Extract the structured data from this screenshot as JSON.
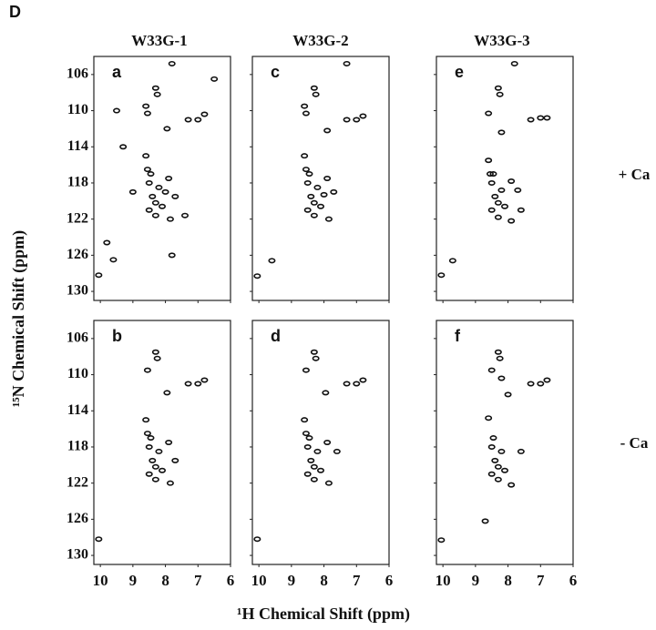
{
  "figure_label": "D",
  "column_titles": [
    "W33G-1",
    "W33G-2",
    "W33G-3"
  ],
  "row_labels": [
    "+ Ca",
    "- Ca"
  ],
  "x_label": "¹H Chemical Shift (ppm)",
  "y_label": "¹⁵N Chemical Shift (ppm)",
  "chart_data": [
    {
      "type": "scatter",
      "panel": "a",
      "xlim": [
        10.2,
        6
      ],
      "ylim": [
        104,
        131
      ],
      "xticks": [
        10,
        9,
        8,
        7,
        6
      ],
      "yticks": [
        106,
        110,
        114,
        118,
        122,
        126,
        130
      ],
      "x": [
        7.8,
        6.5,
        8.3,
        8.25,
        8.6,
        8.55,
        9.5,
        7.3,
        7.0,
        6.8,
        7.95,
        9.3,
        8.6,
        8.55,
        8.5,
        8.2,
        7.9,
        8.4,
        8.3,
        8.1,
        8.5,
        8.3,
        7.85,
        7.4,
        7.7,
        9.0,
        7.8,
        9.6,
        9.8,
        10.05,
        8.45,
        8.0
      ],
      "y": [
        104.8,
        106.5,
        107.5,
        108.2,
        109.5,
        110.3,
        110.0,
        111.0,
        111.0,
        110.4,
        112.0,
        114.0,
        115.0,
        116.5,
        118.0,
        118.5,
        117.5,
        119.5,
        120.2,
        120.6,
        121.0,
        121.6,
        122.0,
        121.6,
        119.5,
        119.0,
        126.0,
        126.5,
        124.6,
        128.2,
        117.0,
        119.0
      ]
    },
    {
      "type": "scatter",
      "panel": "c",
      "xlim": [
        10.2,
        6
      ],
      "ylim": [
        104,
        131
      ],
      "xticks": [
        10,
        9,
        8,
        7,
        6
      ],
      "yticks": [
        106,
        110,
        114,
        118,
        122,
        126,
        130
      ],
      "x": [
        7.3,
        8.3,
        8.25,
        8.6,
        8.55,
        7.3,
        7.0,
        6.8,
        7.9,
        8.6,
        8.55,
        8.5,
        8.2,
        7.9,
        8.4,
        8.3,
        8.1,
        8.5,
        8.3,
        7.85,
        7.7,
        9.6,
        10.05,
        8.45,
        8.0
      ],
      "y": [
        104.8,
        107.5,
        108.2,
        109.5,
        110.3,
        111.0,
        111.0,
        110.6,
        112.2,
        115.0,
        116.5,
        118.0,
        118.5,
        117.5,
        119.5,
        120.2,
        120.6,
        121.0,
        121.6,
        122.0,
        119.0,
        126.6,
        128.3,
        117.0,
        119.3
      ]
    },
    {
      "type": "scatter",
      "panel": "e",
      "xlim": [
        10.2,
        6
      ],
      "ylim": [
        104,
        131
      ],
      "xticks": [
        10,
        9,
        8,
        7,
        6
      ],
      "yticks": [
        106,
        110,
        114,
        118,
        122,
        126,
        130
      ],
      "x": [
        7.8,
        8.3,
        8.25,
        8.6,
        7.3,
        7.0,
        6.8,
        8.2,
        8.6,
        8.55,
        8.5,
        8.2,
        7.9,
        8.4,
        8.3,
        8.1,
        8.5,
        8.3,
        7.9,
        7.7,
        9.7,
        10.05,
        8.45,
        7.6
      ],
      "y": [
        104.8,
        107.5,
        108.2,
        110.3,
        111.0,
        110.8,
        110.8,
        112.4,
        115.5,
        117.0,
        118.0,
        118.8,
        117.8,
        119.5,
        120.2,
        120.6,
        121.0,
        121.8,
        122.2,
        118.8,
        126.6,
        128.2,
        117.0,
        121.0
      ]
    },
    {
      "type": "scatter",
      "panel": "b",
      "xlim": [
        10.2,
        6
      ],
      "ylim": [
        104,
        131
      ],
      "xticks": [
        10,
        9,
        8,
        7,
        6
      ],
      "yticks": [
        106,
        110,
        114,
        118,
        122,
        126,
        130
      ],
      "x": [
        8.3,
        8.25,
        8.55,
        7.3,
        7.0,
        6.8,
        7.95,
        8.6,
        8.55,
        8.5,
        8.2,
        7.9,
        8.4,
        8.3,
        8.1,
        8.5,
        8.3,
        7.85,
        7.7,
        10.05,
        8.45
      ],
      "y": [
        107.5,
        108.2,
        109.5,
        111.0,
        111.0,
        110.6,
        112.0,
        115.0,
        116.5,
        118.0,
        118.5,
        117.5,
        119.5,
        120.2,
        120.6,
        121.0,
        121.6,
        122.0,
        119.5,
        128.2,
        117.0
      ]
    },
    {
      "type": "scatter",
      "panel": "d",
      "xlim": [
        10.2,
        6
      ],
      "ylim": [
        104,
        131
      ],
      "xticks": [
        10,
        9,
        8,
        7,
        6
      ],
      "yticks": [
        106,
        110,
        114,
        118,
        122,
        126,
        130
      ],
      "x": [
        8.3,
        8.25,
        8.55,
        7.3,
        7.0,
        6.8,
        7.95,
        8.6,
        8.55,
        8.5,
        8.2,
        7.9,
        8.4,
        8.3,
        8.1,
        8.5,
        8.3,
        7.85,
        7.6,
        10.05,
        8.45
      ],
      "y": [
        107.5,
        108.2,
        109.5,
        111.0,
        111.0,
        110.6,
        112.0,
        115.0,
        116.5,
        118.0,
        118.5,
        117.5,
        119.5,
        120.2,
        120.6,
        121.0,
        121.6,
        122.0,
        118.5,
        128.2,
        117.0
      ]
    },
    {
      "type": "scatter",
      "panel": "f",
      "xlim": [
        10.2,
        6
      ],
      "ylim": [
        104,
        131
      ],
      "xticks": [
        10,
        9,
        8,
        7,
        6
      ],
      "yticks": [
        106,
        110,
        114,
        118,
        122,
        126,
        130
      ],
      "x": [
        8.3,
        8.25,
        8.5,
        7.3,
        7.0,
        6.8,
        8.0,
        8.2,
        8.6,
        8.5,
        8.2,
        7.6,
        8.4,
        8.3,
        8.1,
        8.5,
        8.3,
        7.9,
        8.7,
        10.05,
        8.45
      ],
      "y": [
        107.5,
        108.2,
        109.5,
        111.0,
        111.0,
        110.6,
        112.2,
        110.4,
        114.8,
        118.0,
        118.5,
        118.5,
        119.5,
        120.2,
        120.6,
        121.0,
        121.6,
        122.2,
        126.2,
        128.3,
        117.0
      ]
    }
  ]
}
